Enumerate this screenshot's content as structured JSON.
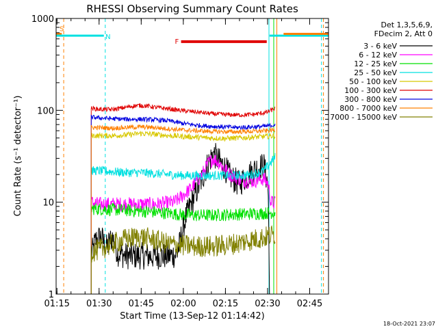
{
  "chart_data": {
    "type": "line",
    "title": "RHESSI Observing Summary Count Rates",
    "xlabel": "Start Time (13-Sep-12 01:14:42)",
    "ylabel": "Count Rate (s⁻¹ detector⁻¹)",
    "x_unit": "minutes after 01:14:42 UT",
    "xlim": [
      0,
      97
    ],
    "ylim": [
      1,
      1000
    ],
    "yscale": "log",
    "grid": false,
    "legend_position": "top-right",
    "timestamp": "18-Oct-2021 23:07",
    "legend_header": [
      "Det 1,3,5,6,9,",
      "FDecim 2, Att 0"
    ],
    "x_ticks": [
      {
        "label": "01:15",
        "value": 0.3
      },
      {
        "label": "01:30",
        "value": 15.3
      },
      {
        "label": "01:45",
        "value": 30.3
      },
      {
        "label": "02:00",
        "value": 45.3
      },
      {
        "label": "02:15",
        "value": 60.3
      },
      {
        "label": "02:30",
        "value": 75.3
      },
      {
        "label": "02:45",
        "value": 90.3
      }
    ],
    "y_ticks": [
      {
        "label": "1",
        "value": 1
      },
      {
        "label": "10",
        "value": 10
      },
      {
        "label": "100",
        "value": 100
      },
      {
        "label": "1000",
        "value": 1000
      }
    ],
    "annotations": [
      {
        "label": "S",
        "x": 2.0,
        "y": 780,
        "color": "#ff8000"
      },
      {
        "label": "N",
        "x": 18.5,
        "y": 640,
        "color": "#00e0e0"
      },
      {
        "label": "F",
        "x": 43.0,
        "y": 570,
        "color": "#e00000"
      }
    ],
    "flag_bars": [
      {
        "x0": 0,
        "x1": 2.0,
        "y": 680,
        "color": "#ff8000",
        "width": 3
      },
      {
        "x0": 0,
        "x1": 17.0,
        "y": 650,
        "color": "#00e0e0",
        "width": 3
      },
      {
        "x0": 44.5,
        "x1": 75.0,
        "y": 560,
        "color": "#e00000",
        "width": 4
      },
      {
        "x0": 76.0,
        "x1": 97.0,
        "y": 650,
        "color": "#00e0e0",
        "width": 3
      },
      {
        "x0": 81.0,
        "x1": 97.0,
        "y": 680,
        "color": "#ff8000",
        "width": 3
      }
    ],
    "vlines": [
      {
        "x": 2.7,
        "color": "#ff8000",
        "dash": true
      },
      {
        "x": 17.5,
        "color": "#00e0e0",
        "dash": true
      },
      {
        "x": 75.8,
        "color": "#00e0e0",
        "dash": false
      },
      {
        "x": 77.5,
        "color": "#00e000",
        "dash": false
      },
      {
        "x": 78.6,
        "color": "#ff8000",
        "dash": false
      },
      {
        "x": 94.5,
        "color": "#00e0e0",
        "dash": true
      },
      {
        "x": 95.2,
        "color": "#ff8000",
        "dash": true
      }
    ],
    "series": [
      {
        "name": "3 - 6 keV",
        "color": "#000000",
        "x": [
          12.5,
          14,
          16,
          18,
          20,
          22,
          25,
          30,
          35,
          40,
          43,
          44,
          45,
          46,
          47,
          48,
          50,
          52,
          54,
          56,
          58,
          60,
          62,
          65,
          67,
          70,
          72,
          74,
          75.5,
          76
        ],
        "y": [
          2.6,
          3.8,
          4.2,
          3.2,
          4.2,
          2.8,
          2.6,
          2.6,
          2.6,
          2.6,
          2.7,
          3.5,
          5.0,
          6.5,
          8.0,
          9.5,
          13.0,
          18.0,
          26.0,
          34.0,
          28.0,
          24.0,
          19.0,
          16.0,
          18.0,
          22.0,
          24.0,
          25.0,
          15.0,
          1.0
        ],
        "jitter": 0.15
      },
      {
        "name": "6 - 12 keV",
        "color": "#ff00ff",
        "x": [
          12.5,
          15,
          20,
          25,
          30,
          35,
          40,
          42,
          44,
          46,
          48,
          50,
          52,
          54,
          56,
          58,
          60,
          62,
          65,
          68,
          70,
          72,
          74,
          75.5,
          76.5,
          78
        ],
        "y": [
          10.0,
          9.5,
          9.5,
          9.5,
          9.5,
          9.5,
          9.8,
          10.0,
          11.0,
          12.5,
          14.0,
          17.0,
          20.0,
          26.0,
          30.0,
          27.0,
          23.0,
          20.0,
          18.0,
          17.0,
          17.0,
          17.5,
          18.0,
          16.0,
          10.0,
          9.8
        ],
        "jitter": 0.08
      },
      {
        "name": "12 - 25 keV",
        "color": "#00e000",
        "x": [
          12.5,
          20,
          30,
          40,
          45,
          50,
          55,
          60,
          65,
          70,
          75,
          78
        ],
        "y": [
          8.5,
          8.3,
          8.0,
          7.6,
          7.3,
          7.2,
          7.2,
          7.3,
          7.4,
          7.5,
          7.6,
          7.8
        ],
        "jitter": 0.07
      },
      {
        "name": "25 - 50 keV",
        "color": "#00e0e0",
        "x": [
          12.5,
          15,
          20,
          25,
          30,
          35,
          40,
          45,
          50,
          55,
          60,
          65,
          70,
          74,
          76,
          78
        ],
        "y": [
          22.0,
          22.0,
          21.5,
          21.0,
          21.0,
          20.5,
          20.0,
          19.5,
          19.5,
          19.5,
          19.5,
          19.5,
          20.0,
          22.0,
          26.0,
          31.0
        ],
        "jitter": 0.05
      },
      {
        "name": "50 - 100 keV",
        "color": "#d8c800",
        "x": [
          12.5,
          15,
          20,
          25,
          30,
          35,
          40,
          45,
          50,
          55,
          60,
          65,
          70,
          75,
          78
        ],
        "y": [
          53.0,
          53.0,
          53.0,
          54.0,
          56.0,
          55.0,
          53.0,
          52.0,
          51.0,
          50.0,
          49.5,
          50.0,
          51.0,
          52.0,
          53.0
        ],
        "jitter": 0.03
      },
      {
        "name": "100 - 300 keV",
        "color": "#e00000",
        "x": [
          12.5,
          15,
          20,
          25,
          28,
          30,
          33,
          35,
          40,
          45,
          50,
          55,
          60,
          65,
          70,
          75,
          78
        ],
        "y": [
          105.0,
          103.0,
          102.0,
          108.0,
          112.0,
          113.0,
          111.0,
          108.0,
          104.0,
          99.0,
          96.0,
          92.0,
          90.0,
          89.0,
          90.0,
          95.0,
          105.0
        ],
        "jitter": 0.025
      },
      {
        "name": "300 - 800 keV",
        "color": "#0000e0",
        "x": [
          12.5,
          15,
          20,
          25,
          30,
          35,
          40,
          45,
          50,
          55,
          60,
          65,
          70,
          75,
          78
        ],
        "y": [
          84.0,
          83.0,
          81.0,
          80.0,
          80.0,
          79.0,
          77.0,
          72.0,
          69.0,
          67.0,
          66.0,
          65.0,
          66.0,
          67.0,
          70.0
        ],
        "jitter": 0.025
      },
      {
        "name": "800 - 7000 keV",
        "color": "#ff8000",
        "x": [
          12.5,
          15,
          20,
          25,
          30,
          35,
          40,
          45,
          50,
          55,
          60,
          65,
          70,
          75,
          78
        ],
        "y": [
          65.0,
          65.0,
          64.0,
          65.0,
          66.0,
          65.0,
          63.0,
          61.0,
          60.0,
          59.0,
          58.5,
          58.5,
          59.0,
          60.0,
          61.0
        ],
        "jitter": 0.025
      },
      {
        "name": "7000 - 15000 keV",
        "color": "#808000",
        "x": [
          12.5,
          15,
          20,
          25,
          30,
          35,
          40,
          45,
          50,
          55,
          60,
          65,
          70,
          75,
          78
        ],
        "y": [
          2.9,
          3.0,
          3.5,
          4.0,
          4.2,
          3.9,
          3.5,
          3.4,
          3.3,
          3.3,
          3.4,
          3.6,
          3.9,
          4.2,
          4.5
        ],
        "jitter": 0.12
      }
    ]
  }
}
